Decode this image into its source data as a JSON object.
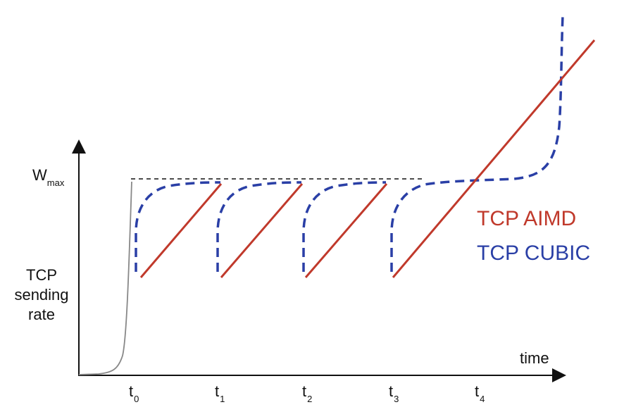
{
  "y_axis": {
    "wmax_main": "W",
    "wmax_sub": "max",
    "label_lines": [
      "TCP",
      "sending",
      "rate"
    ]
  },
  "x_axis": {
    "label": "time",
    "ticks": [
      {
        "main": "t",
        "sub": "0"
      },
      {
        "main": "t",
        "sub": "1"
      },
      {
        "main": "t",
        "sub": "2"
      },
      {
        "main": "t",
        "sub": "3"
      },
      {
        "main": "t",
        "sub": "4"
      }
    ]
  },
  "legend": {
    "aimd": "TCP AIMD",
    "cubic": "TCP CUBIC"
  },
  "colors": {
    "aimd": "#c0392b",
    "cubic": "#2a3fa6",
    "slow_start": "#888888",
    "wmax_line": "#111111",
    "axis": "#111111"
  }
}
